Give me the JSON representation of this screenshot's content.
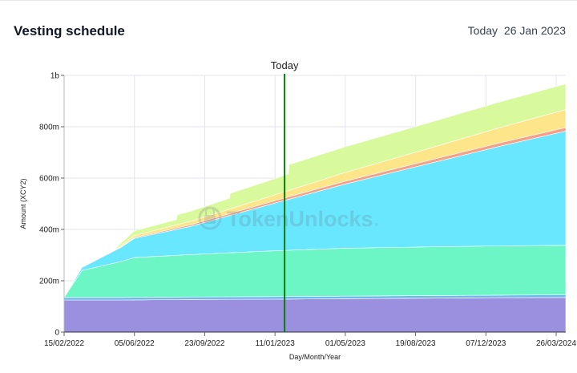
{
  "header": {
    "title": "Vesting schedule",
    "today_prefix": "Today",
    "today_date": "26 Jan 2023"
  },
  "watermark": {
    "brand": "TokenUnlocks",
    "dot": "."
  },
  "chart_data": {
    "type": "area",
    "stacked": true,
    "title": "",
    "xlabel": "Day/Month/Year",
    "ylabel": "Amount (XCY2)",
    "x_start": "2022-02-15",
    "x_end": "2024-04-10",
    "ylim": [
      0,
      1000
    ],
    "y_unit": "millions",
    "y_ticks": [
      {
        "value": 0,
        "label": "0"
      },
      {
        "value": 200,
        "label": "200m"
      },
      {
        "value": 400,
        "label": "400m"
      },
      {
        "value": 600,
        "label": "600m"
      },
      {
        "value": 800,
        "label": "800m"
      },
      {
        "value": 1000,
        "label": "1b"
      }
    ],
    "x_ticks": [
      {
        "date": "2022-02-15",
        "label": "15/02/2022"
      },
      {
        "date": "2022-06-05",
        "label": "05/06/2022"
      },
      {
        "date": "2022-09-23",
        "label": "23/09/2022"
      },
      {
        "date": "2023-01-11",
        "label": "11/01/2023"
      },
      {
        "date": "2023-05-01",
        "label": "01/05/2023"
      },
      {
        "date": "2023-08-19",
        "label": "19/08/2023"
      },
      {
        "date": "2023-12-07",
        "label": "07/12/2023"
      },
      {
        "date": "2024-03-26",
        "label": "26/03/2024"
      }
    ],
    "today_marker": {
      "date": "2023-01-26",
      "label": "Today",
      "color": "#0a7a0a"
    },
    "grid": true,
    "series": [
      {
        "color": "#9b8fe0",
        "points": [
          [
            "2022-02-15",
            125
          ],
          [
            "2022-05-15",
            125
          ],
          [
            "2022-09-01",
            127
          ],
          [
            "2023-01-01",
            128
          ],
          [
            "2023-05-01",
            130
          ],
          [
            "2023-09-01",
            132
          ],
          [
            "2024-01-01",
            134
          ],
          [
            "2024-04-10",
            135
          ]
        ]
      },
      {
        "color": "#6fb8ec",
        "points": [
          [
            "2022-02-15",
            10
          ],
          [
            "2022-05-15",
            10
          ],
          [
            "2022-09-01",
            10
          ],
          [
            "2023-01-01",
            10
          ],
          [
            "2023-05-01",
            10
          ],
          [
            "2023-09-01",
            10
          ],
          [
            "2024-01-01",
            10
          ],
          [
            "2024-04-10",
            10
          ]
        ]
      },
      {
        "color": "#6cf6c6",
        "points": [
          [
            "2022-02-15",
            0
          ],
          [
            "2022-03-15",
            105
          ],
          [
            "2022-05-15",
            140
          ],
          [
            "2022-06-05",
            155
          ],
          [
            "2022-09-01",
            165
          ],
          [
            "2023-01-01",
            178
          ],
          [
            "2023-05-01",
            187
          ],
          [
            "2023-09-01",
            190
          ],
          [
            "2024-01-01",
            192
          ],
          [
            "2024-04-10",
            193
          ]
        ]
      },
      {
        "color": "#68e7ff",
        "points": [
          [
            "2022-02-15",
            0
          ],
          [
            "2022-03-15",
            12
          ],
          [
            "2022-05-15",
            55
          ],
          [
            "2022-06-05",
            75
          ],
          [
            "2022-09-01",
            110
          ],
          [
            "2023-01-01",
            180
          ],
          [
            "2023-05-01",
            250
          ],
          [
            "2023-09-01",
            320
          ],
          [
            "2024-01-01",
            390
          ],
          [
            "2024-04-10",
            445
          ]
        ]
      },
      {
        "color": "#f5a088",
        "points": [
          [
            "2022-02-15",
            0
          ],
          [
            "2022-05-01",
            0
          ],
          [
            "2022-06-05",
            3
          ],
          [
            "2022-09-01",
            6
          ],
          [
            "2023-01-01",
            9
          ],
          [
            "2023-05-01",
            11
          ],
          [
            "2023-09-01",
            12
          ],
          [
            "2024-01-01",
            13
          ],
          [
            "2024-04-10",
            14
          ]
        ]
      },
      {
        "color": "#fde68a",
        "points": [
          [
            "2022-02-15",
            0
          ],
          [
            "2022-05-01",
            0
          ],
          [
            "2022-05-15",
            5
          ],
          [
            "2022-06-05",
            8
          ],
          [
            "2022-09-01",
            14
          ],
          [
            "2023-01-01",
            22
          ],
          [
            "2023-05-01",
            34
          ],
          [
            "2023-09-01",
            46
          ],
          [
            "2024-01-01",
            60
          ],
          [
            "2024-04-10",
            70
          ]
        ]
      },
      {
        "color": "#d9f99d",
        "points": [
          [
            "2022-02-15",
            0
          ],
          [
            "2022-05-01",
            0
          ],
          [
            "2022-05-15",
            10
          ],
          [
            "2022-06-05",
            18
          ],
          [
            "2022-08-10",
            20
          ],
          [
            "2022-08-11",
            38
          ],
          [
            "2022-11-01",
            42
          ],
          [
            "2022-11-02",
            60
          ],
          [
            "2023-02-01",
            64
          ],
          [
            "2023-02-02",
            100
          ],
          [
            "2023-05-01",
            100
          ],
          [
            "2023-09-01",
            100
          ],
          [
            "2024-01-01",
            100
          ],
          [
            "2024-04-10",
            100
          ]
        ]
      }
    ]
  }
}
